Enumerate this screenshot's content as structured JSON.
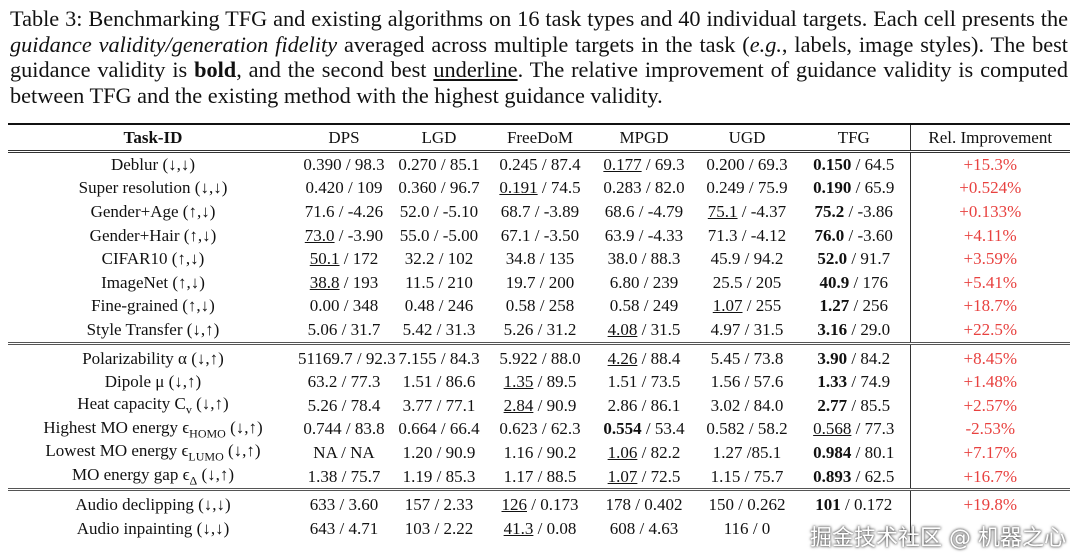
{
  "caption": [
    {
      "text": "Table 3:"
    },
    {
      "text": " Benchmarking TFG and existing algorithms on 16 task types and 40 individual targets. Each cell presents the "
    },
    {
      "text": "guidance validity/generation fidelity",
      "style": "italic"
    },
    {
      "text": " averaged across multiple targets in the task ("
    },
    {
      "text": "e.g.",
      "style": "italic"
    },
    {
      "text": ", labels, image styles). The best guidance validity is "
    },
    {
      "text": "bold",
      "style": "bold"
    },
    {
      "text": ", and the second best "
    },
    {
      "text": "underline",
      "style": "underline"
    },
    {
      "text": ". The relative improvement of guidance validity is computed between TFG and the existing method with the highest guidance validity."
    }
  ],
  "table": {
    "header": [
      "Task-ID",
      "DPS",
      "LGD",
      "FreeDoM",
      "MPGD",
      "UGD",
      "TFG",
      "Rel. Improvement"
    ],
    "groups": [
      {
        "rows": [
          {
            "label": "Deblur (↓,↓)",
            "cells": [
              {
                "v": "0.390",
                "f": "/ 98.3"
              },
              {
                "v": "0.270",
                "f": "/ 85.1"
              },
              {
                "v": "0.245",
                "f": "/ 87.4"
              },
              {
                "v": "0.177",
                "f": "/ 69.3",
                "style": "underline"
              },
              {
                "v": "0.200",
                "f": "/ 69.3"
              },
              {
                "v": "0.150",
                "f": "/ 64.5",
                "style": "bold"
              }
            ],
            "improvement": "+15.3%"
          },
          {
            "label": "Super resolution (↓,↓)",
            "cells": [
              {
                "v": "0.420",
                "f": "/ 109"
              },
              {
                "v": "0.360",
                "f": "/ 96.7"
              },
              {
                "v": "0.191",
                "f": "/ 74.5",
                "style": "underline"
              },
              {
                "v": "0.283",
                "f": "/ 82.0"
              },
              {
                "v": "0.249",
                "f": "/ 75.9"
              },
              {
                "v": "0.190",
                "f": "/ 65.9",
                "style": "bold"
              }
            ],
            "improvement": "+0.524%"
          },
          {
            "label": "Gender+Age (↑,↓)",
            "cells": [
              {
                "v": "71.6",
                "f": "/ -4.26"
              },
              {
                "v": "52.0",
                "f": "/ -5.10"
              },
              {
                "v": "68.7",
                "f": "/ -3.89"
              },
              {
                "v": "68.6",
                "f": "/ -4.79"
              },
              {
                "v": "75.1",
                "f": "/ -4.37",
                "style": "underline"
              },
              {
                "v": "75.2",
                "f": "/ -3.86",
                "style": "bold"
              }
            ],
            "improvement": "+0.133%"
          },
          {
            "label": "Gender+Hair (↑,↓)",
            "cells": [
              {
                "v": "73.0",
                "f": "/ -3.90",
                "style": "underline"
              },
              {
                "v": "55.0",
                "f": "/ -5.00"
              },
              {
                "v": "67.1",
                "f": "/ -3.50"
              },
              {
                "v": "63.9",
                "f": "/ -4.33"
              },
              {
                "v": "71.3",
                "f": "/ -4.12"
              },
              {
                "v": "76.0",
                "f": "/ -3.60",
                "style": "bold"
              }
            ],
            "improvement": "+4.11%"
          },
          {
            "label": "CIFAR10 (↑,↓)",
            "cells": [
              {
                "v": "50.1",
                "f": "/ 172",
                "style": "underline"
              },
              {
                "v": "32.2",
                "f": "/ 102"
              },
              {
                "v": "34.8",
                "f": "/ 135"
              },
              {
                "v": "38.0",
                "f": "/ 88.3"
              },
              {
                "v": "45.9",
                "f": "/ 94.2"
              },
              {
                "v": "52.0",
                "f": "/ 91.7",
                "style": "bold"
              }
            ],
            "improvement": "+3.59%"
          },
          {
            "label": "ImageNet (↑,↓)",
            "cells": [
              {
                "v": "38.8",
                "f": "/ 193",
                "style": "underline"
              },
              {
                "v": "11.5",
                "f": "/ 210"
              },
              {
                "v": "19.7",
                "f": "/ 200"
              },
              {
                "v": "6.80",
                "f": "/ 239"
              },
              {
                "v": "25.5",
                "f": "/ 205"
              },
              {
                "v": "40.9",
                "f": "/ 176",
                "style": "bold"
              }
            ],
            "improvement": "+5.41%"
          },
          {
            "label": "Fine-grained (↑,↓)",
            "cells": [
              {
                "v": "0.00",
                "f": "/ 348"
              },
              {
                "v": "0.48",
                "f": "/ 246"
              },
              {
                "v": "0.58",
                "f": "/ 258"
              },
              {
                "v": "0.58",
                "f": "/ 249"
              },
              {
                "v": "1.07",
                "f": "/ 255",
                "style": "underline"
              },
              {
                "v": "1.27",
                "f": "/ 256",
                "style": "bold"
              }
            ],
            "improvement": "+18.7%"
          },
          {
            "label": "Style Transfer (↓,↑)",
            "cells": [
              {
                "v": "5.06",
                "f": "/ 31.7"
              },
              {
                "v": "5.42",
                "f": "/ 31.3"
              },
              {
                "v": "5.26",
                "f": "/ 31.2"
              },
              {
                "v": "4.08",
                "f": "/ 31.5",
                "style": "underline"
              },
              {
                "v": "4.97",
                "f": "/ 31.5"
              },
              {
                "v": "3.16",
                "f": "/ 29.0",
                "style": "bold"
              }
            ],
            "improvement": "+22.5%"
          }
        ]
      },
      {
        "rows": [
          {
            "label": "Polarizability α (↓,↑)",
            "cells": [
              {
                "v": "51169.7",
                "f": "/ 92.3"
              },
              {
                "v": "7.155",
                "f": "/ 84.3"
              },
              {
                "v": "5.922",
                "f": "/ 88.0"
              },
              {
                "v": "4.26",
                "f": "/ 88.4",
                "style": "underline"
              },
              {
                "v": "5.45",
                "f": "/ 73.8"
              },
              {
                "v": "3.90",
                "f": "/ 84.2",
                "style": "bold"
              }
            ],
            "improvement": "+8.45%"
          },
          {
            "label": "Dipole μ (↓,↑)",
            "cells": [
              {
                "v": "63.2",
                "f": "/ 77.3"
              },
              {
                "v": "1.51",
                "f": "/ 86.6"
              },
              {
                "v": "1.35",
                "f": "/ 89.5",
                "style": "underline"
              },
              {
                "v": "1.51",
                "f": "/ 73.5"
              },
              {
                "v": "1.56",
                "f": "/ 57.6"
              },
              {
                "v": "1.33",
                "f": "/ 74.9",
                "style": "bold"
              }
            ],
            "improvement": "+1.48%"
          },
          {
            "label": [
              "Heat capacity C",
              "v",
              " (↓,↑)"
            ],
            "cells": [
              {
                "v": "5.26",
                "f": "/ 78.4"
              },
              {
                "v": "3.77",
                "f": "/ 77.1"
              },
              {
                "v": "2.84",
                "f": "/ 90.9",
                "style": "underline"
              },
              {
                "v": "2.86",
                "f": "/ 86.1"
              },
              {
                "v": "3.02",
                "f": "/ 84.0"
              },
              {
                "v": "2.77",
                "f": "/ 85.5",
                "style": "bold"
              }
            ],
            "improvement": "+2.57%"
          },
          {
            "label": [
              "Highest MO energy ϵ",
              "HOMO",
              " (↓,↑)"
            ],
            "cells": [
              {
                "v": "0.744",
                "f": "/ 83.8"
              },
              {
                "v": "0.664",
                "f": "/ 66.4"
              },
              {
                "v": "0.623",
                "f": "/ 62.3"
              },
              {
                "v": "0.554",
                "f": "/ 53.4",
                "style": "bold"
              },
              {
                "v": "0.582",
                "f": "/ 58.2"
              },
              {
                "v": "0.568",
                "f": "/ 77.3",
                "style": "underline"
              }
            ],
            "improvement": "-2.53%"
          },
          {
            "label": [
              "Lowest MO energy ϵ",
              "LUMO",
              " (↓,↑)"
            ],
            "cells": [
              {
                "v": "NA",
                "f": "/ NA"
              },
              {
                "v": "1.20",
                "f": "/ 90.9"
              },
              {
                "v": "1.16",
                "f": "/ 90.2"
              },
              {
                "v": "1.06",
                "f": "/ 82.2",
                "style": "underline"
              },
              {
                "v": "1.27",
                "f": "/85.1"
              },
              {
                "v": "0.984",
                "f": "/ 80.1",
                "style": "bold"
              }
            ],
            "improvement": "+7.17%"
          },
          {
            "label": [
              "MO energy gap ϵ",
              "Δ",
              " (↓,↑)"
            ],
            "cells": [
              {
                "v": "1.38",
                "f": "/ 75.7"
              },
              {
                "v": "1.19",
                "f": "/ 85.3"
              },
              {
                "v": "1.17",
                "f": "/ 88.5"
              },
              {
                "v": "1.07",
                "f": "/ 72.5",
                "style": "underline"
              },
              {
                "v": "1.15",
                "f": "/ 75.7"
              },
              {
                "v": "0.893",
                "f": "/ 62.5",
                "style": "bold"
              }
            ],
            "improvement": "+16.7%"
          }
        ]
      },
      {
        "rows": [
          {
            "label": "Audio declipping (↓,↓)",
            "cells": [
              {
                "v": "633",
                "f": "/ 3.60"
              },
              {
                "v": "157",
                "f": "/ 2.33"
              },
              {
                "v": "126",
                "f": "/ 0.173",
                "style": "underline"
              },
              {
                "v": "178",
                "f": "/ 0.402"
              },
              {
                "v": "150",
                "f": "/ 0.262"
              },
              {
                "v": "101",
                "f": "/ 0.172",
                "style": "bold"
              }
            ],
            "improvement": "+19.8%"
          },
          {
            "label": "Audio inpainting (↓,↓)",
            "cells": [
              {
                "v": "643",
                "f": "/ 4.71"
              },
              {
                "v": "103",
                "f": "/ 2.22"
              },
              {
                "v": "41.3",
                "f": "/ 0.08",
                "style": "underline"
              },
              {
                "v": "608",
                "f": "/ 4.63"
              },
              {
                "v": "116",
                "f": "/ 0"
              },
              null
            ],
            "improvement": null
          }
        ]
      }
    ]
  },
  "watermark": "掘金技术社区 @ 机器之心"
}
